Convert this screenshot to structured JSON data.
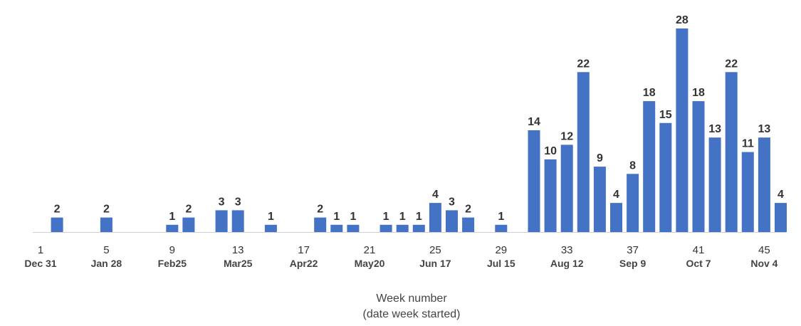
{
  "chart_data": {
    "type": "bar",
    "title": "",
    "xlabel": "Week number",
    "xlabel_sub": "(date week started)",
    "ylabel": "",
    "ylim": [
      0,
      29
    ],
    "grid": false,
    "bar_color": "#4472C4",
    "x": [
      1,
      2,
      3,
      4,
      5,
      6,
      7,
      8,
      9,
      10,
      11,
      12,
      13,
      14,
      15,
      16,
      17,
      18,
      19,
      20,
      21,
      22,
      23,
      24,
      25,
      26,
      27,
      28,
      29,
      30,
      31,
      32,
      33,
      34,
      35,
      36,
      37,
      38,
      39,
      40,
      41,
      42,
      43,
      44,
      45,
      46
    ],
    "values": [
      0,
      2,
      0,
      0,
      2,
      0,
      0,
      0,
      1,
      2,
      0,
      3,
      3,
      0,
      1,
      0,
      0,
      2,
      1,
      1,
      0,
      1,
      1,
      1,
      4,
      3,
      2,
      0,
      1,
      0,
      14,
      10,
      12,
      22,
      9,
      4,
      8,
      18,
      15,
      28,
      18,
      13,
      22,
      11,
      13,
      4
    ],
    "tick_weeks": [
      1,
      5,
      9,
      13,
      17,
      21,
      25,
      29,
      33,
      37,
      41,
      45
    ],
    "tick_dates": [
      "Dec 31",
      "Jan 28",
      "Feb25",
      "Mar25",
      "Apr22",
      "May20",
      "Jun 17",
      "Jul 15",
      "Aug 12",
      "Sep 9",
      "Oct 7",
      "Nov 4"
    ]
  }
}
